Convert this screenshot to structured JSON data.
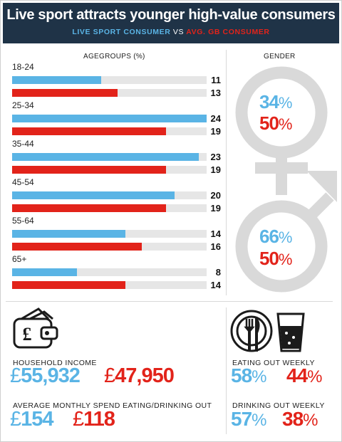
{
  "header": {
    "title": "Live sport attracts younger high-value consumers",
    "series_a": "LIVE SPORT CONSUMER",
    "vs": "VS",
    "series_b": "AVG. GB CONSUMER"
  },
  "colors": {
    "live_sport": "#5ab4e5",
    "gb_avg": "#e2231a",
    "header_bg": "#1f3347",
    "symbol_grey": "#d9d9d9"
  },
  "chart_data": {
    "type": "bar",
    "title": "AGEGROUPS (%)",
    "categories": [
      "18-24",
      "25-34",
      "35-44",
      "45-54",
      "55-64",
      "65+"
    ],
    "series": [
      {
        "name": "LIVE SPORT CONSUMER",
        "values": [
          11,
          24,
          23,
          20,
          14,
          8
        ]
      },
      {
        "name": "AVG. GB CONSUMER",
        "values": [
          13,
          19,
          19,
          19,
          16,
          14
        ]
      }
    ],
    "xlim": [
      0,
      24
    ],
    "orientation": "horizontal"
  },
  "gender": {
    "label": "GENDER",
    "female": {
      "live_sport": "34",
      "gb_avg": "50"
    },
    "male": {
      "live_sport": "66",
      "gb_avg": "50"
    },
    "pct_sign": "%",
    "icons": [
      "female-symbol-icon",
      "male-symbol-icon"
    ]
  },
  "income": {
    "icon": "wallet-pound-icon",
    "label": "HOUSEHOLD INCOME",
    "currency": "£",
    "live_sport": "55,932",
    "gb_avg": "47,950"
  },
  "spend": {
    "label": "AVERAGE MONTHLY SPEND EATING/DRINKING OUT",
    "currency": "£",
    "live_sport": "154",
    "gb_avg": "118"
  },
  "eating": {
    "icons": [
      "plate-cutlery-icon",
      "glass-icon"
    ],
    "label": "EATING OUT WEEKLY",
    "live_sport": "58",
    "gb_avg": "44",
    "pct_sign": "%"
  },
  "drinking": {
    "label": "DRINKING OUT WEEKLY",
    "live_sport": "57",
    "gb_avg": "38",
    "pct_sign": "%"
  }
}
